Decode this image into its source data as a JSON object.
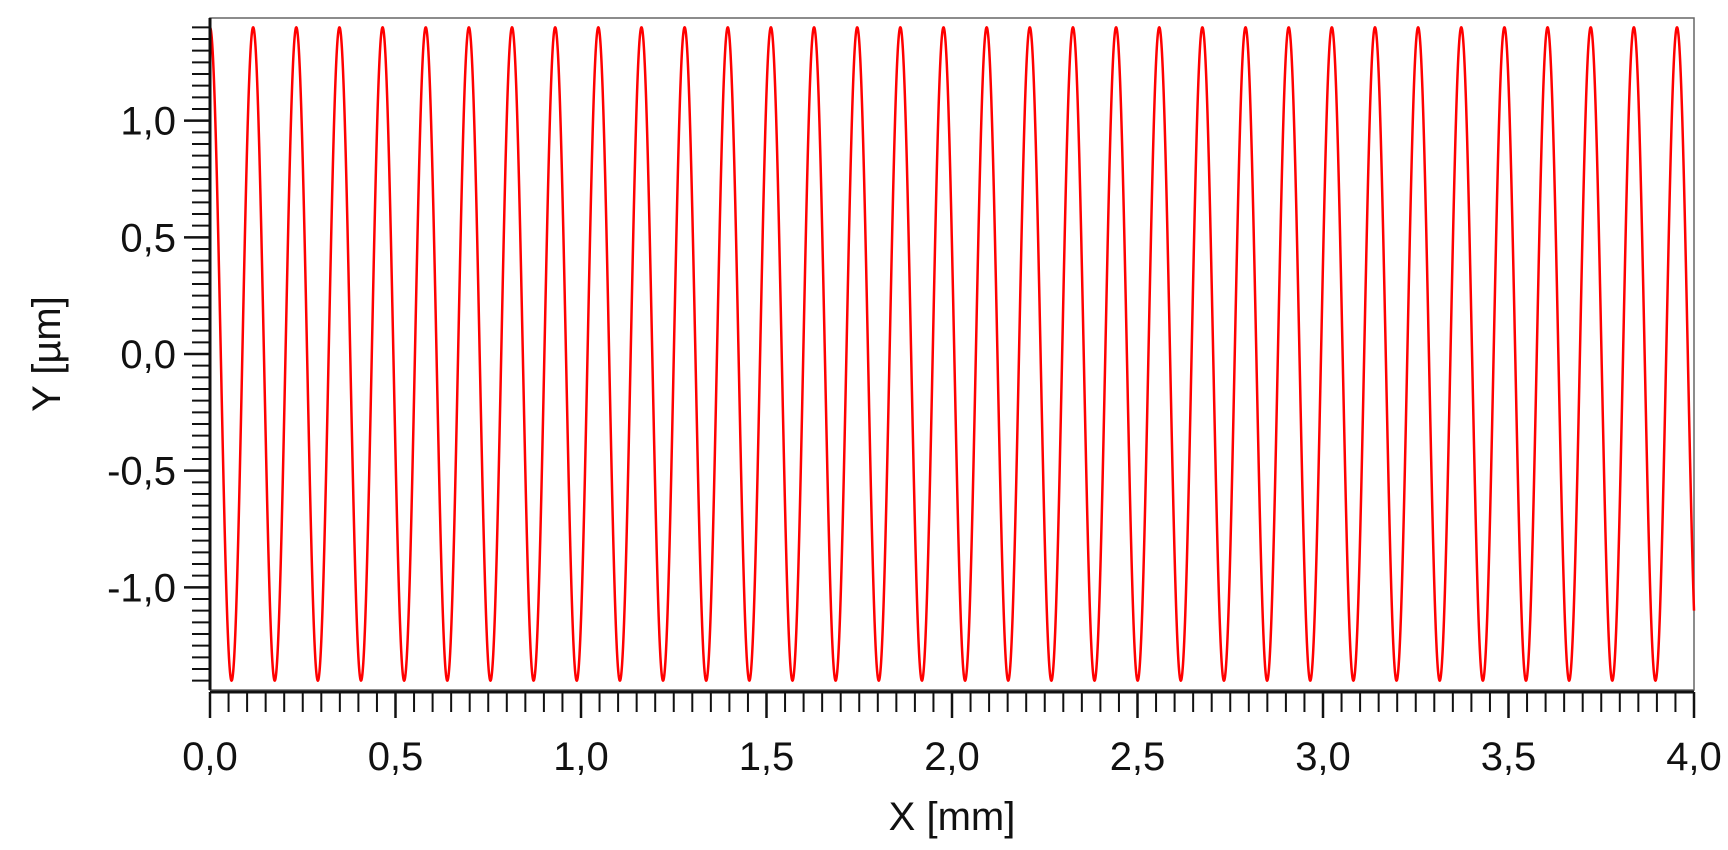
{
  "chart_data": {
    "type": "line",
    "title": "",
    "xlabel": "X [mm]",
    "ylabel": "Y [µm]",
    "xlim": [
      0.0,
      4.0
    ],
    "ylim": [
      -1.44,
      1.44
    ],
    "x_ticks": [
      0.0,
      0.5,
      1.0,
      1.5,
      2.0,
      2.5,
      3.0,
      3.5,
      4.0
    ],
    "x_tick_labels": [
      "0,0",
      "0,5",
      "1,0",
      "1,5",
      "2,0",
      "2,5",
      "3,0",
      "3,5",
      "4,0"
    ],
    "y_ticks": [
      1.0,
      0.5,
      0.0,
      -0.5,
      -1.0
    ],
    "y_tick_labels": [
      "1,0",
      "0,5",
      "0,0",
      "-0,5",
      "-1,0"
    ],
    "x_minor_step": 0.05,
    "y_minor_step": 0.05,
    "grid": false,
    "legend": "none",
    "series": [
      {
        "color": "#ff0000",
        "waveform": "sine",
        "amplitude": 1.4,
        "wavelength": 0.1163,
        "phase_deg": 90,
        "x_start": 0.0,
        "x_end": 4.0
      }
    ]
  }
}
